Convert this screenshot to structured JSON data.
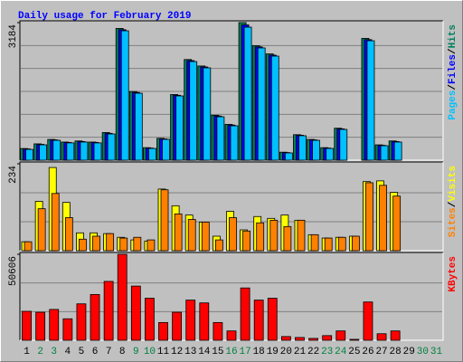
{
  "chart_data": {
    "type": "bar",
    "title": "Daily usage for February 2019",
    "categories": [
      "1",
      "2",
      "3",
      "4",
      "5",
      "6",
      "7",
      "8",
      "9",
      "10",
      "11",
      "12",
      "13",
      "14",
      "15",
      "16",
      "17",
      "18",
      "19",
      "20",
      "21",
      "22",
      "23",
      "24",
      "25",
      "26",
      "27",
      "28",
      "29",
      "30",
      "31"
    ],
    "category_colors": [
      "#000000",
      "#008040",
      "#008040",
      "#000000",
      "#000000",
      "#000000",
      "#000000",
      "#000000",
      "#008040",
      "#008040",
      "#000000",
      "#000000",
      "#000000",
      "#000000",
      "#000000",
      "#008040",
      "#008040",
      "#000000",
      "#000000",
      "#000000",
      "#000000",
      "#000000",
      "#008040",
      "#008040",
      "#000000",
      "#000000",
      "#000000",
      "#000000",
      "#000000",
      "#008040",
      "#008040"
    ],
    "separator": "/",
    "panels": [
      {
        "ylim": [
          0,
          3184
        ],
        "yticks": [
          3184
        ],
        "series": [
          {
            "name": "Hits",
            "color": "#00805c",
            "values": [
              270,
              378,
              480,
              420,
              445,
              420,
              640,
              3050,
              1590,
              290,
              505,
              1520,
              2330,
              2180,
              1040,
              830,
              3184,
              2650,
              2460,
              185,
              590,
              480,
              290,
              740,
              0,
              2820,
              355,
              445,
              null,
              null,
              null
            ]
          },
          {
            "name": "Files",
            "color": "#0000ff",
            "values": [
              260,
              366,
              470,
              410,
              432,
              410,
              622,
              3020,
              1568,
              280,
              492,
              1502,
              2305,
              2158,
              1022,
              812,
              3130,
              2622,
              2432,
              176,
              578,
              470,
              280,
              725,
              0,
              2790,
              344,
              432,
              null,
              null,
              null
            ]
          },
          {
            "name": "Pages",
            "color": "#00c0ff",
            "values": [
              250,
              356,
              460,
              400,
              420,
              400,
              607,
              2995,
              1550,
              272,
              482,
              1487,
              2283,
              2137,
              1005,
              796,
              3079,
              2598,
              2409,
              168,
              566,
              460,
              272,
              712,
              0,
              2765,
              335,
              420,
              null,
              null,
              null
            ]
          }
        ]
      },
      {
        "ylim": [
          0,
          234
        ],
        "yticks": [
          234
        ],
        "series": [
          {
            "name": "Visits",
            "color": "#ffff00",
            "values": [
              24,
              133,
              224,
              130,
              48,
              48,
              46,
              36,
              29,
              26,
              166,
              121,
              96,
              77,
              39,
              106,
              56,
              92,
              87,
              96,
              82,
              43,
              34,
              36,
              39,
              186,
              188,
              157,
              null,
              null,
              null
            ]
          },
          {
            "name": "Sites",
            "color": "#ff8000",
            "values": [
              24,
              113,
              154,
              89,
              31,
              39,
              46,
              34,
              36,
              29,
              164,
              99,
              84,
              77,
              29,
              89,
              53,
              75,
              82,
              65,
              82,
              43,
              34,
              36,
              39,
              183,
              176,
              147,
              null,
              null,
              null
            ]
          }
        ]
      },
      {
        "ylim": [
          0,
          50606
        ],
        "yticks": [
          50606
        ],
        "series": [
          {
            "name": "KBytes",
            "color": "#ff0000",
            "values": [
              17052,
              16500,
              18150,
              12650,
              21450,
              26950,
              34650,
              50606,
              31900,
              24750,
              10450,
              16500,
              23650,
              22000,
              10450,
              5500,
              30800,
              23650,
              24750,
              2200,
              1650,
              1100,
              2750,
              5500,
              550,
              22550,
              3850,
              5500,
              null,
              null,
              null
            ]
          }
        ]
      }
    ]
  }
}
